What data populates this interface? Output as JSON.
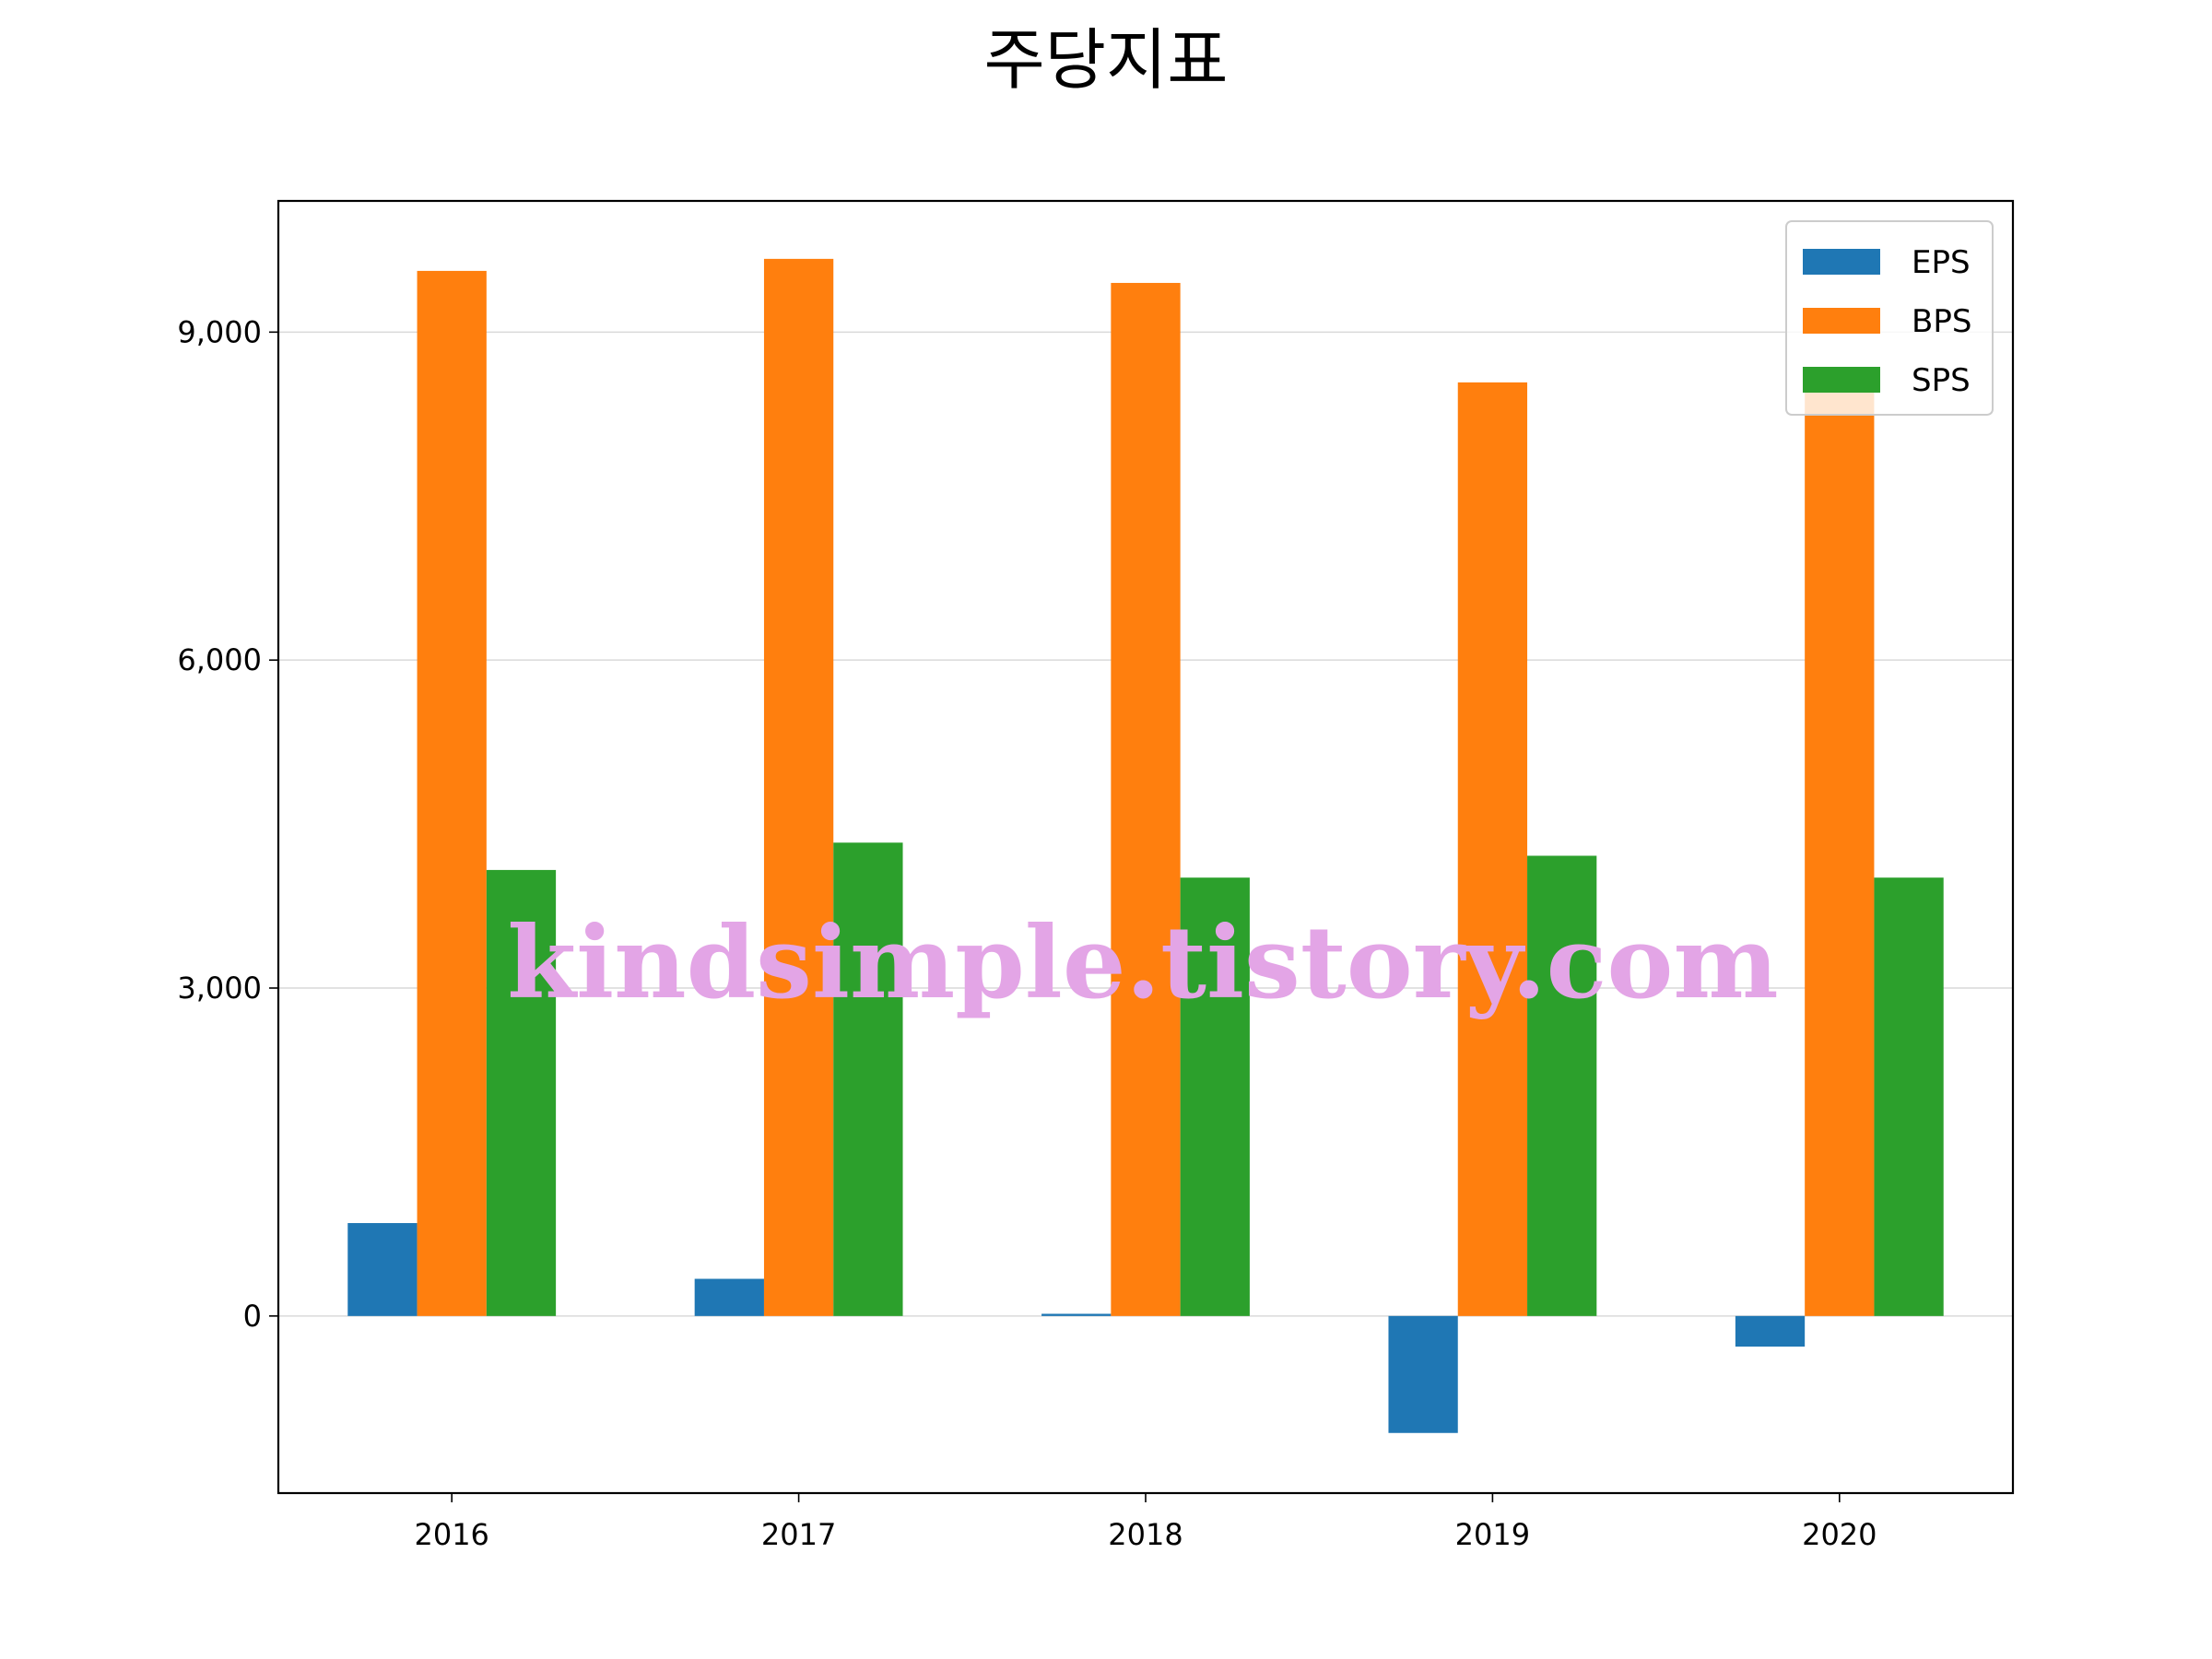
{
  "chart_data": {
    "type": "bar",
    "title": "주당지표",
    "xlabel": "",
    "ylabel": "",
    "categories": [
      "2016",
      "2017",
      "2018",
      "2019",
      "2020"
    ],
    "series": [
      {
        "name": "EPS",
        "color": "#1f77b4",
        "values": [
          850,
          340,
          20,
          -1070,
          -280
        ]
      },
      {
        "name": "BPS",
        "color": "#ff7f0e",
        "values": [
          9560,
          9670,
          9450,
          8540,
          8460
        ]
      },
      {
        "name": "SPS",
        "color": "#2ca02c",
        "values": [
          4080,
          4330,
          4010,
          4210,
          4010
        ]
      }
    ],
    "ylim": [
      -1620,
      10200
    ],
    "yticks": [
      0,
      3000,
      6000,
      9000
    ],
    "ytick_labels": [
      "0",
      "3,000",
      "6,000",
      "9,000"
    ],
    "grid": true,
    "legend_position": "top-right"
  },
  "watermark": {
    "text": "kindsimple.tistory.com",
    "color": "#e3a5e6"
  }
}
